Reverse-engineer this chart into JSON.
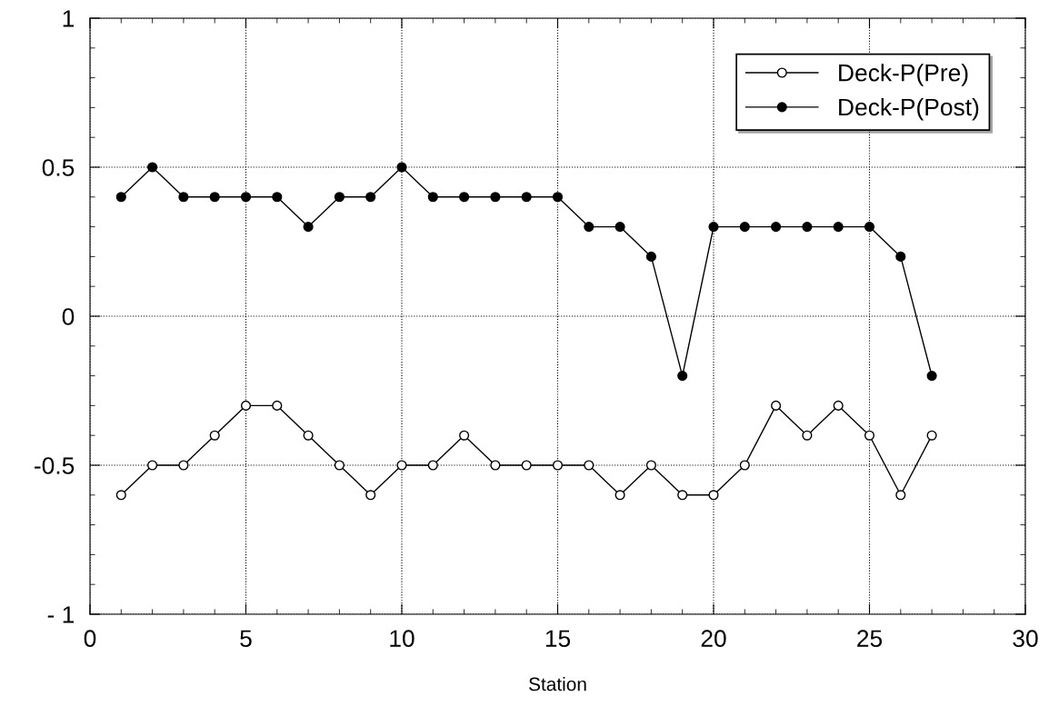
{
  "chart_data": {
    "type": "line",
    "xlabel": "Station",
    "x": [
      1,
      2,
      3,
      4,
      5,
      6,
      7,
      8,
      9,
      10,
      11,
      12,
      13,
      14,
      15,
      16,
      17,
      18,
      19,
      20,
      21,
      22,
      23,
      24,
      25,
      26,
      27
    ],
    "series": [
      {
        "name": "Deck-P(Pre)",
        "color": "#000000",
        "marker": "circle",
        "values": [
          -0.6,
          -0.5,
          -0.5,
          -0.4,
          -0.3,
          -0.3,
          -0.4,
          -0.5,
          -0.6,
          -0.5,
          -0.5,
          -0.4,
          -0.5,
          -0.5,
          -0.5,
          -0.5,
          -0.6,
          -0.5,
          -0.6,
          -0.6,
          -0.5,
          -0.3,
          -0.4,
          -0.3,
          -0.4,
          -0.6,
          -0.4
        ]
      },
      {
        "name": "Deck-P(Post)",
        "color": "#000000",
        "marker": "circle",
        "values": [
          0.4,
          0.5,
          0.4,
          0.4,
          0.4,
          0.4,
          0.3,
          0.4,
          0.4,
          0.5,
          0.4,
          0.4,
          0.4,
          0.4,
          0.4,
          0.3,
          0.3,
          0.2,
          -0.2,
          0.3,
          0.3,
          0.3,
          0.3,
          0.3,
          0.3,
          0.2,
          -0.2
        ]
      }
    ],
    "xlim": [
      0,
      30
    ],
    "xticks": [
      0,
      5,
      10,
      15,
      20,
      25,
      30
    ],
    "ylim": [
      -1,
      1
    ],
    "yticks": [
      {
        "value": -1,
        "label": "- 1"
      },
      {
        "value": -0.5,
        "label": "-0.5"
      },
      0,
      0.5,
      1
    ],
    "grid": true,
    "legend": "top right",
    "line_style": "solid"
  }
}
